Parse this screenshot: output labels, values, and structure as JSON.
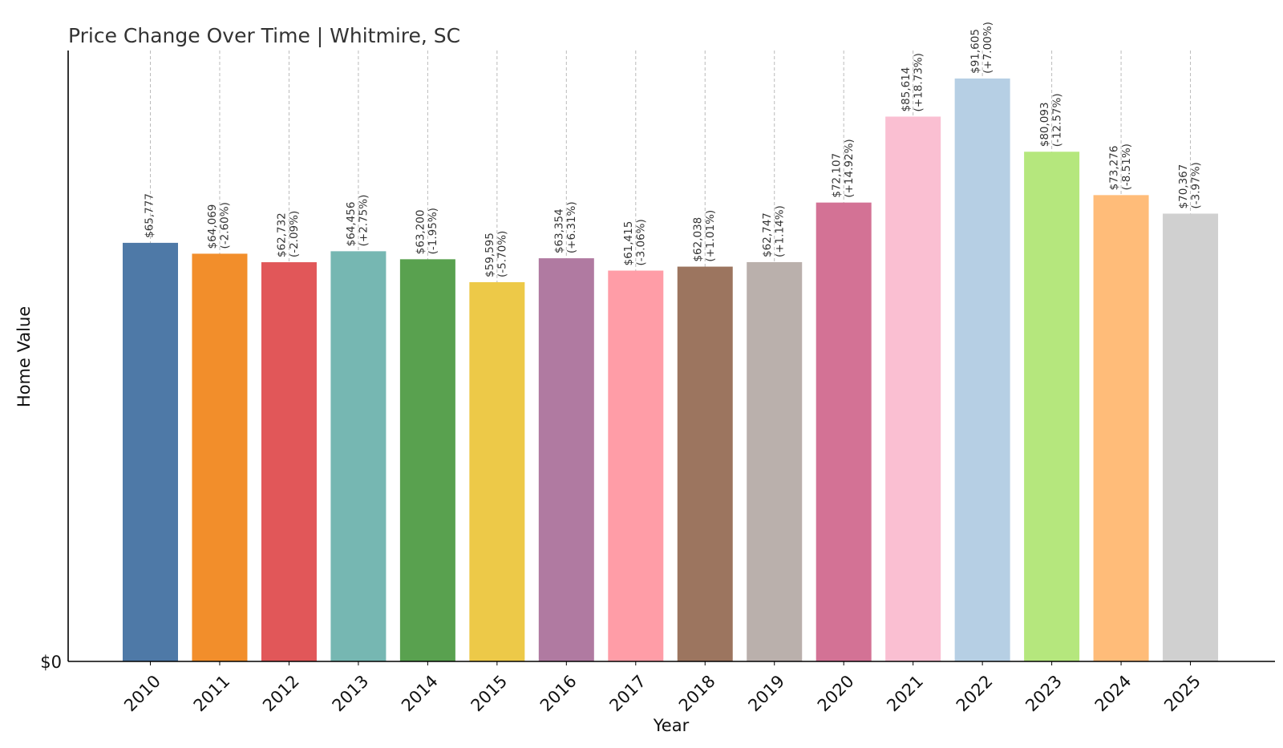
{
  "chart_data": {
    "type": "bar",
    "title": "Price Change Over Time | Whitmire, SC",
    "xlabel": "Year",
    "ylabel": "Home Value",
    "y_tick_labels": [
      "$0"
    ],
    "ylim": [
      0,
      96000
    ],
    "grid": "vertical dashed",
    "categories": [
      "2010",
      "2011",
      "2012",
      "2013",
      "2014",
      "2015",
      "2016",
      "2017",
      "2018",
      "2019",
      "2020",
      "2021",
      "2022",
      "2023",
      "2024",
      "2025"
    ],
    "values": [
      65777,
      64069,
      62732,
      64456,
      63200,
      59595,
      63354,
      61415,
      62038,
      62747,
      72107,
      85614,
      91605,
      80093,
      73276,
      70367
    ],
    "value_labels": [
      "$65,777",
      "$64,069",
      "$62,732",
      "$64,456",
      "$63,200",
      "$59,595",
      "$63,354",
      "$61,415",
      "$62,038",
      "$62,747",
      "$72,107",
      "$85,614",
      "$91,605",
      "$80,093",
      "$73,276",
      "$70,367"
    ],
    "change_labels": [
      "",
      "(-2.60%)",
      "(-2.09%)",
      "(+2.75%)",
      "(-1.95%)",
      "(-5.70%)",
      "(+6.31%)",
      "(-3.06%)",
      "(+1.01%)",
      "(+1.14%)",
      "(+14.92%)",
      "(+18.73%)",
      "(+7.00%)",
      "(-12.57%)",
      "(-8.51%)",
      "(-3.97%)"
    ],
    "colors": [
      "#4e79a7",
      "#f28e2b",
      "#e15759",
      "#76b7b2",
      "#59a14f",
      "#edc948",
      "#b07aa1",
      "#ff9da7",
      "#9c755f",
      "#bab0ac",
      "#d37295",
      "#fabfd2",
      "#b6cfe4",
      "#b5e77d",
      "#ffbc79",
      "#d0d0d0"
    ]
  }
}
